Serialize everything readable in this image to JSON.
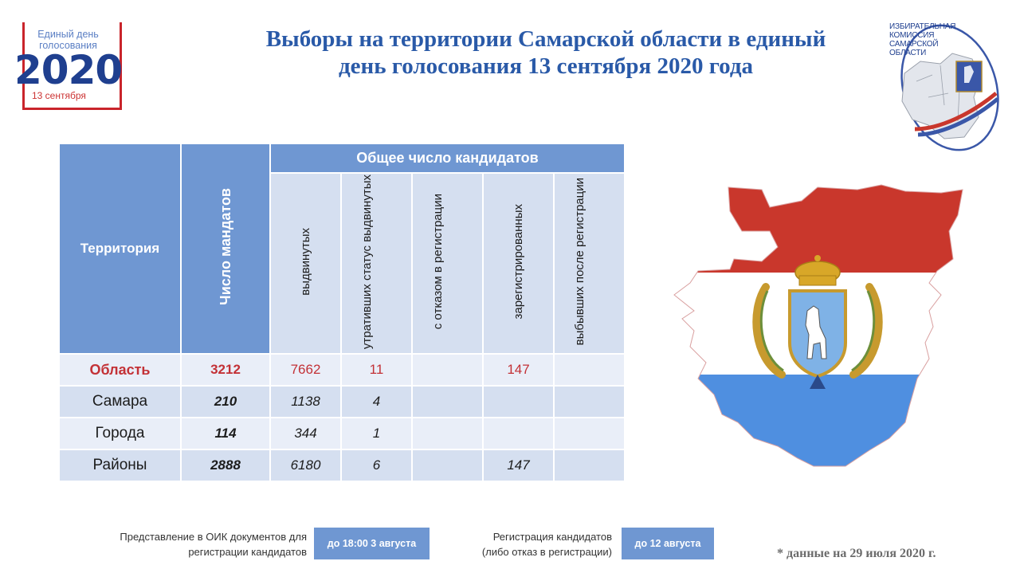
{
  "logo_left": {
    "line1": "Единый день",
    "line2": "голосования",
    "year": "2020",
    "date": "13 сентября"
  },
  "logo_right": {
    "line1": "ИЗБИРАТЕЛЬНАЯ",
    "line2": "КОМИССИЯ",
    "line3": "САМАРСКОЙ",
    "line4": "ОБЛАСТИ"
  },
  "title": {
    "line1": "Выборы на территории Самарской области в единый",
    "line2": "день голосования 13 сентября 2020 года"
  },
  "table": {
    "col_territory": "Территория",
    "col_mandates": "Число мандатов",
    "group_header": "Общее число кандидатов",
    "sub_headers": [
      "выдвинутых",
      "утративших статус выдвинутых",
      "с отказом в регистрации",
      "зарегистрированных",
      "выбывших после регистрации"
    ],
    "rows": [
      {
        "territory": "Область",
        "mandates": "3212",
        "nominated": "7662",
        "lost": "11",
        "refused": "",
        "registered": "147",
        "dropped": ""
      },
      {
        "territory": "Самара",
        "mandates": "210",
        "nominated": "1138",
        "lost": "4",
        "refused": "",
        "registered": "",
        "dropped": ""
      },
      {
        "territory": "Города",
        "mandates": "114",
        "nominated": "344",
        "lost": "1",
        "refused": "",
        "registered": "",
        "dropped": ""
      },
      {
        "territory": "Районы",
        "mandates": "2888",
        "nominated": "6180",
        "lost": "6",
        "refused": "",
        "registered": "147",
        "dropped": ""
      }
    ]
  },
  "footer": {
    "docs_label_line1": "Представление в ОИК документов для",
    "docs_label_line2": "регистрации кандидатов",
    "docs_deadline": "до 18:00 3 августа",
    "reg_label_line1": "Регистрация кандидатов",
    "reg_label_line2": "(либо отказ в регистрации)",
    "reg_deadline": "до 12 августа",
    "note": "*  данные на 29 июля 2020 г."
  },
  "colors": {
    "header_blue": "#6f97d2",
    "title_blue": "#2a5aa8",
    "accent_red": "#c33136",
    "map_red": "#c9372c",
    "map_blue": "#4f8fe0"
  }
}
